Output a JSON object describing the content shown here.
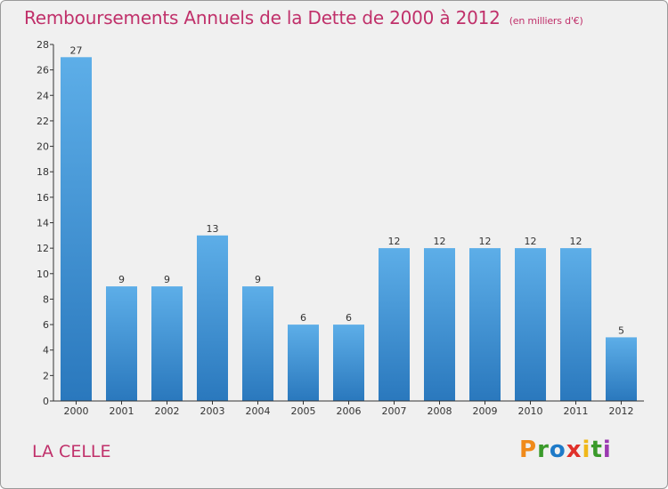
{
  "chart_data": {
    "type": "bar",
    "title": "Remboursements Annuels de la Dette de 2000 à 2012",
    "subtitle": "(en milliers d'€)",
    "categories": [
      "2000",
      "2001",
      "2002",
      "2003",
      "2004",
      "2005",
      "2006",
      "2007",
      "2008",
      "2009",
      "2010",
      "2011",
      "2012"
    ],
    "values": [
      27,
      9,
      9,
      13,
      9,
      6,
      6,
      12,
      12,
      12,
      12,
      12,
      5
    ],
    "ylim": [
      0,
      28
    ],
    "yticks": [
      0,
      2,
      4,
      6,
      8,
      10,
      12,
      14,
      16,
      18,
      20,
      22,
      24,
      26,
      28
    ],
    "xlabel": "",
    "ylabel": "",
    "grid": false,
    "bar_color_top": "#5daee8",
    "bar_color_bottom": "#2a78bd"
  },
  "footer": {
    "town": "LA CELLE",
    "logo": "Proxiti",
    "logo_letters": [
      "P",
      "r",
      "o",
      "x",
      "i",
      "t",
      "i"
    ],
    "logo_colors": [
      "#f08a1a",
      "#3a9a2a",
      "#1e7ac8",
      "#e0302a",
      "#f0b81a",
      "#3a9a2a",
      "#9a3ab0"
    ]
  },
  "colors": {
    "accent": "#c0306a",
    "background": "#f0f0f0",
    "axis": "#333333"
  }
}
